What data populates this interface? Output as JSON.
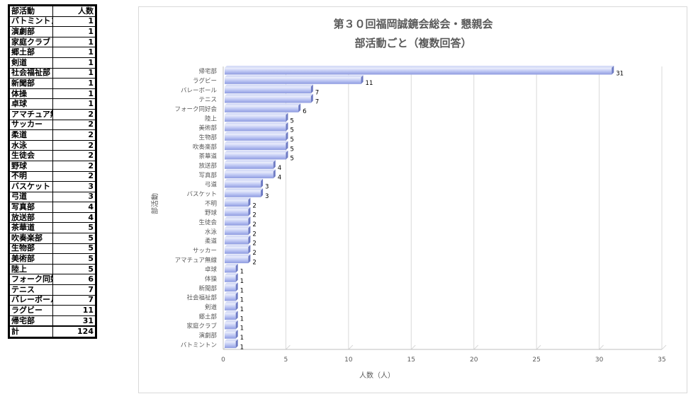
{
  "table": {
    "header": {
      "name": "部活動",
      "count": "人数"
    },
    "rows": [
      {
        "name": "バトミントン",
        "count": "1"
      },
      {
        "name": "演劇部",
        "count": "1"
      },
      {
        "name": "家庭クラブ",
        "count": "1"
      },
      {
        "name": "郷土部",
        "count": "1"
      },
      {
        "name": "剣道",
        "count": "1"
      },
      {
        "name": "社会福祉部",
        "count": "1"
      },
      {
        "name": "新聞部",
        "count": "1"
      },
      {
        "name": "体操",
        "count": "1"
      },
      {
        "name": "卓球",
        "count": "1"
      },
      {
        "name": "アマチュア無線",
        "count": "2"
      },
      {
        "name": "サッカー",
        "count": "2"
      },
      {
        "name": "柔道",
        "count": "2"
      },
      {
        "name": "水泳",
        "count": "2"
      },
      {
        "name": "生徒会",
        "count": "2"
      },
      {
        "name": "野球",
        "count": "2"
      },
      {
        "name": "不明",
        "count": "2"
      },
      {
        "name": "バスケット",
        "count": "3"
      },
      {
        "name": "弓道",
        "count": "3"
      },
      {
        "name": "写真部",
        "count": "4"
      },
      {
        "name": "放送部",
        "count": "4"
      },
      {
        "name": "茶華道",
        "count": "5"
      },
      {
        "name": "吹奏楽部",
        "count": "5"
      },
      {
        "name": "生物部",
        "count": "5"
      },
      {
        "name": "美術部",
        "count": "5"
      },
      {
        "name": "陸上",
        "count": "5"
      },
      {
        "name": "フォーク同好会",
        "count": "6"
      },
      {
        "name": "テニス",
        "count": "7"
      },
      {
        "name": "バレーボール",
        "count": "7"
      },
      {
        "name": "ラグビー",
        "count": "11"
      },
      {
        "name": "帰宅部",
        "count": "31"
      }
    ],
    "total": {
      "name": "計",
      "count": "124"
    }
  },
  "chart_data": {
    "type": "bar",
    "orientation": "horizontal",
    "title": "第３０回福岡誠鏡会総会・懇親会",
    "subtitle": "部活動ごと（複数回答）",
    "xlabel": "人数（人）",
    "ylabel": "部活動",
    "xlim": [
      0,
      35
    ],
    "xticks": [
      0,
      5,
      10,
      15,
      20,
      25,
      30,
      35
    ],
    "grid": true,
    "categories": [
      "帰宅部",
      "ラグビー",
      "バレーボール",
      "テニス",
      "フォーク同好会",
      "陸上",
      "美術部",
      "生物部",
      "吹奏楽部",
      "茶華道",
      "放送部",
      "写真部",
      "弓道",
      "バスケット",
      "不明",
      "野球",
      "生徒会",
      "水泳",
      "柔道",
      "サッカー",
      "アマチュア無線",
      "卓球",
      "体操",
      "新聞部",
      "社会福祉部",
      "剣道",
      "郷土部",
      "家庭クラブ",
      "演劇部",
      "バトミントン"
    ],
    "values": [
      31,
      11,
      7,
      7,
      6,
      5,
      5,
      5,
      5,
      5,
      4,
      4,
      3,
      3,
      2,
      2,
      2,
      2,
      2,
      2,
      2,
      1,
      1,
      1,
      1,
      1,
      1,
      1,
      1,
      1
    ],
    "bar_color": "#a9b5ee"
  }
}
